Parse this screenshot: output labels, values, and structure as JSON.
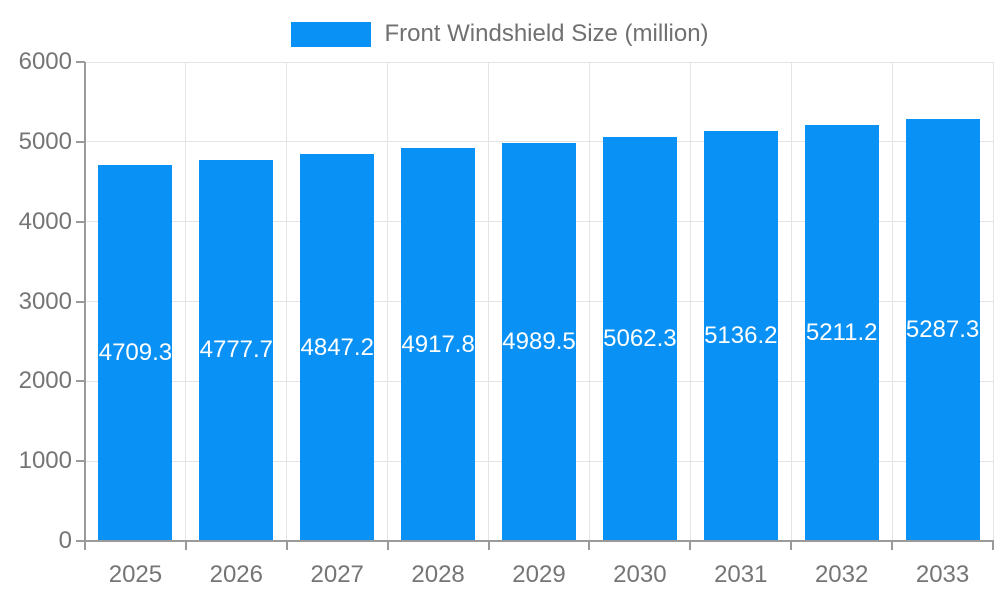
{
  "legend": {
    "label": "Front Windshield Size (million)"
  },
  "chart_data": {
    "type": "bar",
    "title": "Front Windshield Size (million)",
    "categories": [
      "2025",
      "2026",
      "2027",
      "2028",
      "2029",
      "2030",
      "2031",
      "2032",
      "2033"
    ],
    "series": [
      {
        "name": "Front Windshield Size (million)",
        "values": [
          4709.3,
          4777.7,
          4847.2,
          4917.8,
          4989.5,
          5062.3,
          5136.2,
          5211.2,
          5287.3
        ],
        "value_labels": [
          "4709.3",
          "4777.7",
          "4847.2",
          "4917.8",
          "4989.5",
          "5062.3",
          "5136.2",
          "5211.2",
          "5287.3"
        ]
      }
    ],
    "xlabel": "",
    "ylabel": "",
    "ylim": [
      0,
      6000
    ],
    "y_ticks": [
      "0",
      "1000",
      "2000",
      "3000",
      "4000",
      "5000",
      "6000"
    ],
    "y_tick_values": [
      0,
      1000,
      2000,
      3000,
      4000,
      5000,
      6000
    ],
    "grid": true,
    "legend_position": "top",
    "bar_label_position": "inside-center",
    "colors": {
      "bar": "#0991F5",
      "grid": "#E4E4E4",
      "axis": "#9A9A9A",
      "tick_label": "#757575",
      "legend_text": "#707070",
      "bar_label": "#FFFFFF",
      "background": "#FFFFFF"
    }
  }
}
